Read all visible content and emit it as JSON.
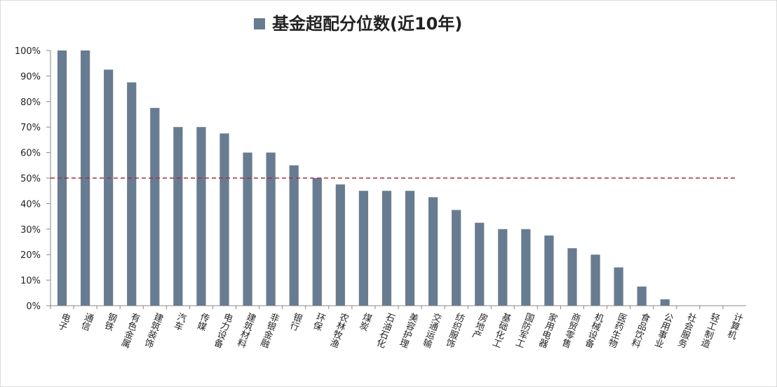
{
  "chart_data": {
    "type": "bar",
    "categories": [
      "电子",
      "通信",
      "钢铁",
      "有色金属",
      "建筑装饰",
      "汽车",
      "传媒",
      "电力设备",
      "建筑材料",
      "非银金融",
      "银行",
      "环保",
      "农林牧渔",
      "煤炭",
      "石油石化",
      "美容护理",
      "交通运输",
      "纺织服饰",
      "房地产",
      "基础化工",
      "国防军工",
      "家用电器",
      "商贸零售",
      "机械设备",
      "医药生物",
      "食品饮料",
      "公用事业",
      "社会服务",
      "轻工制造",
      "计算机"
    ],
    "series": [
      {
        "name": "基金超配分位数(近10年)",
        "color": "#687c91",
        "values": [
          100,
          100,
          92.5,
          87.5,
          77.5,
          70,
          70,
          67.5,
          60,
          60,
          55,
          50,
          47.5,
          45,
          45,
          45,
          42.5,
          37.5,
          32.5,
          30,
          30,
          27.5,
          22.5,
          20,
          15,
          7.5,
          2.5,
          0,
          0,
          0
        ]
      }
    ],
    "ylim": [
      0,
      100
    ],
    "yticks": [
      {
        "value": 0,
        "label": "0%"
      },
      {
        "value": 10,
        "label": "10%"
      },
      {
        "value": 20,
        "label": "20%"
      },
      {
        "value": 30,
        "label": "30%"
      },
      {
        "value": 40,
        "label": "40%"
      },
      {
        "value": 50,
        "label": "50%"
      },
      {
        "value": 60,
        "label": "60%"
      },
      {
        "value": 70,
        "label": "70%"
      },
      {
        "value": 80,
        "label": "80%"
      },
      {
        "value": 90,
        "label": "90%"
      },
      {
        "value": 100,
        "label": "100%"
      }
    ],
    "reference_line": 50,
    "reference_color": "#a03040",
    "legend": "top"
  }
}
